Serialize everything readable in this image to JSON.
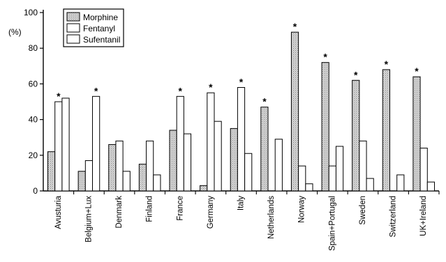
{
  "chart_data": {
    "type": "bar",
    "ylabel": "(%)",
    "ylim": [
      0,
      100
    ],
    "yticks": [
      0,
      20,
      40,
      60,
      80,
      100
    ],
    "categories": [
      "Avusturia",
      "Belgium+Lux",
      "Denmark",
      "Finland",
      "France",
      "Germany",
      "Italy",
      "Netherlands",
      "Norway",
      "Spain+Portugal",
      "Sweden",
      "Switzerland",
      "UK+Ireland"
    ],
    "series": [
      {
        "name": "Morphine",
        "values": [
          22,
          11,
          26,
          15,
          34,
          3,
          35,
          47,
          89,
          72,
          62,
          68,
          64
        ]
      },
      {
        "name": "Fentanyl",
        "values": [
          50,
          17,
          28,
          28,
          53,
          55,
          58,
          0,
          14,
          14,
          28,
          0,
          24
        ]
      },
      {
        "name": "Sufentanil",
        "values": [
          52,
          53,
          11,
          9,
          32,
          39,
          21,
          29,
          4,
          25,
          7,
          9,
          5
        ]
      }
    ],
    "significance_marks": [
      {
        "category": "Avusturia",
        "series": "Fentanyl",
        "mark": "*"
      },
      {
        "category": "Belgium+Lux",
        "series": "Sufentanil",
        "mark": "*"
      },
      {
        "category": "France",
        "series": "Fentanyl",
        "mark": "*"
      },
      {
        "category": "Germany",
        "series": "Fentanyl",
        "mark": "*"
      },
      {
        "category": "Italy",
        "series": "Fentanyl",
        "mark": "*"
      },
      {
        "category": "Netherlands",
        "series": "Morphine",
        "mark": "*"
      },
      {
        "category": "Norway",
        "series": "Morphine",
        "mark": "*"
      },
      {
        "category": "Spain+Portugal",
        "series": "Morphine",
        "mark": "*"
      },
      {
        "category": "Sweden",
        "series": "Morphine",
        "mark": "*"
      },
      {
        "category": "Switzerland",
        "series": "Morphine",
        "mark": "*"
      },
      {
        "category": "UK+Ireland",
        "series": "Morphine",
        "mark": "*"
      }
    ],
    "legend": {
      "position": "top-left",
      "entries": [
        "Morphine",
        "Fentanyl",
        "Sufentanil"
      ]
    },
    "colors": {
      "Morphine": "#c8c8c8",
      "Fentanyl": "#ffffff",
      "Sufentanil": "#ffffff",
      "outline": "#000000"
    },
    "grid": false
  }
}
